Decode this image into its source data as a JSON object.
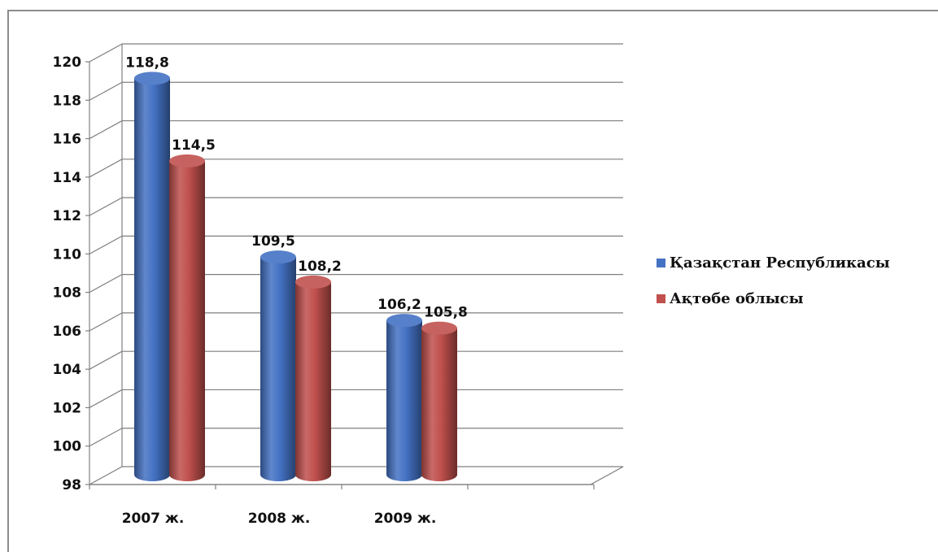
{
  "chart_data": {
    "type": "bar",
    "categories": [
      "2007 ж.",
      "2008 ж.",
      "2009 ж."
    ],
    "series": [
      {
        "name": "Қазақстан Республикасы",
        "values": [
          118.8,
          109.5,
          106.2
        ],
        "color": "#4472C4"
      },
      {
        "name": "Ақтөбе облысы",
        "values": [
          114.5,
          108.2,
          105.8
        ],
        "color": "#C0504D"
      }
    ],
    "data_labels": [
      [
        "118,8",
        "109,5",
        "106,2"
      ],
      [
        "114,5",
        "108,2",
        "105,8"
      ]
    ],
    "y_ticks": [
      "98",
      "100",
      "102",
      "104",
      "106",
      "108",
      "110",
      "112",
      "114",
      "116",
      "118",
      "120"
    ],
    "ylim": [
      98,
      120
    ],
    "title": "",
    "xlabel": "",
    "ylabel": "",
    "grid": true,
    "style": "3d-cylinder",
    "legend_position": "right"
  }
}
